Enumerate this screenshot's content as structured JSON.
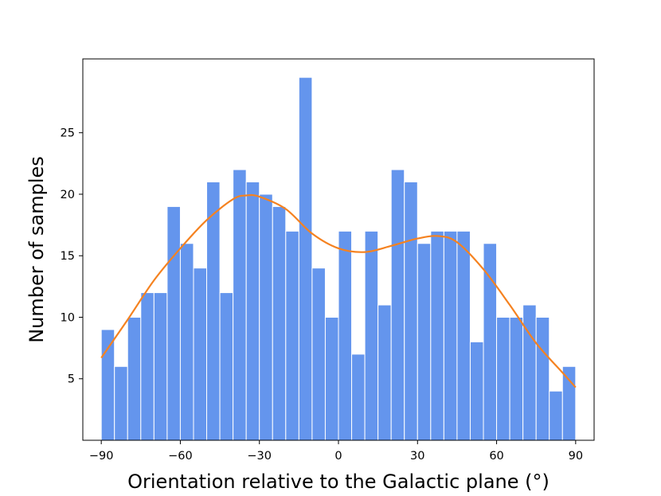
{
  "chart_data": {
    "type": "bar",
    "subtype": "histogram",
    "title": "",
    "xlabel": "Orientation relative to the Galactic plane (°)",
    "ylabel": "Number of samples",
    "bin_width": 5,
    "x_bin_edges": [
      -90,
      90
    ],
    "xlim": [
      -97,
      97
    ],
    "ylim": [
      0,
      31
    ],
    "xticks": [
      -90,
      -60,
      -30,
      0,
      30,
      60,
      90
    ],
    "xtick_labels": [
      "−90",
      "−60",
      "−30",
      "0",
      "30",
      "60",
      "90"
    ],
    "yticks": [
      5,
      10,
      15,
      20,
      25
    ],
    "ytick_labels": [
      "5",
      "10",
      "15",
      "20",
      "25"
    ],
    "grid": false,
    "series": [
      {
        "type": "bar",
        "color": "#6495ED",
        "values": [
          9,
          6,
          10,
          12,
          12,
          19,
          16,
          14,
          21,
          12,
          22,
          21,
          20,
          19,
          17,
          29.5,
          14,
          10,
          17,
          7,
          17,
          11,
          22,
          21,
          16,
          17,
          17,
          17,
          8,
          16,
          10,
          10,
          11,
          10,
          4,
          6
        ]
      },
      {
        "type": "line",
        "color": "#F58220",
        "x": [
          -90,
          -80,
          -70,
          -60,
          -50,
          -40,
          -35,
          -30,
          -20,
          -10,
          0,
          10,
          20,
          30,
          38,
          45,
          55,
          65,
          75,
          85,
          90
        ],
        "y": [
          6.7,
          9.8,
          13.0,
          15.6,
          17.9,
          19.6,
          19.9,
          19.8,
          18.8,
          16.8,
          15.6,
          15.3,
          15.8,
          16.4,
          16.6,
          16.1,
          13.9,
          11.0,
          7.9,
          5.5,
          4.3
        ]
      }
    ]
  }
}
